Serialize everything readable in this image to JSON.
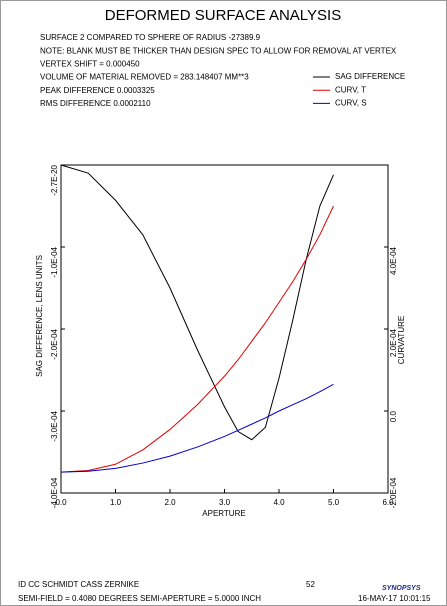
{
  "chart_data": {
    "type": "line",
    "title": "DEFORMED SURFACE ANALYSIS",
    "header_lines": [
      "SURFACE   2 COMPARED TO SPHERE OF RADIUS   -27389.9",
      "NOTE: BLANK MUST BE THICKER THAN DESIGN SPEC TO ALLOW FOR REMOVAL AT VERTEX",
      "VERTEX SHIFT =   0.000450",
      "VOLUME OF MATERIAL REMOVED =   283.148407 MM**3",
      "PEAK DIFFERENCE    0.0003325",
      "RMS DIFFERENCE    0.0002110"
    ],
    "xlabel": "APERTURE",
    "ylabel": "SAG DIFFERENCE, LENS UNITS",
    "y2label": "CURVATURE",
    "x": [
      0,
      0.5,
      1,
      1.5,
      2,
      2.5,
      3,
      3.25,
      3.5,
      3.75,
      4,
      4.25,
      4.5,
      4.75,
      5
    ],
    "series": [
      {
        "name": "SAG DIFFERENCE",
        "color": "#000000",
        "values": [
          0,
          -1e-05,
          -4.3e-05,
          -8.5e-05,
          -0.00015,
          -0.000225,
          -0.000295,
          -0.000325,
          -0.000335,
          -0.00032,
          -0.00026,
          -0.00019,
          -0.000115,
          -5e-05,
          -1.2e-05
        ]
      },
      {
        "name": "CURV, T",
        "color": "#e00000",
        "axis": "y2",
        "values": [
          -0.000149,
          -0.000145,
          -0.00013,
          -9.5e-05,
          -4.5e-05,
          1.5e-05,
          8.5e-05,
          0.000125,
          0.00017,
          0.000215,
          0.000265,
          0.000315,
          0.00037,
          0.00043,
          0.0005
        ]
      },
      {
        "name": "CURV, S",
        "color": "#0000c8",
        "axis": "y2",
        "values": [
          -0.000149,
          -0.000147,
          -0.00014,
          -0.000127,
          -0.00011,
          -8.8e-05,
          -6.2e-05,
          -4.7e-05,
          -3.2e-05,
          -1.7e-05,
          0,
          1.5e-05,
          3e-05,
          4.7e-05,
          6.5e-05
        ]
      }
    ],
    "xlim": [
      0,
      6
    ],
    "xticks": [
      {
        "value": 0,
        "label": "0.0"
      },
      {
        "value": 1,
        "label": "1.0"
      },
      {
        "value": 2,
        "label": "2.0"
      },
      {
        "value": 3,
        "label": "3.0"
      },
      {
        "value": 4,
        "label": "4.0"
      },
      {
        "value": 5,
        "label": "5.0"
      },
      {
        "value": 6,
        "label": "6.0"
      }
    ],
    "ylim": [
      -0.0004,
      -2.7e-20
    ],
    "yticks": [
      {
        "value": -2.7e-20,
        "label": "-2.7E-20"
      },
      {
        "value": -0.0001,
        "label": "-1.0E-04"
      },
      {
        "value": -0.0002,
        "label": "-2.0E-04"
      },
      {
        "value": -0.0003,
        "label": "-3.0E-04"
      },
      {
        "value": -0.0004,
        "label": "-4.0E-04"
      }
    ],
    "y2lim": [
      -0.0002,
      0.0006
    ],
    "y2ticks": [
      {
        "value": -0.0002,
        "label": "-2.0E-04"
      },
      {
        "value": 0,
        "label": "0.0"
      },
      {
        "value": 0.0002,
        "label": "2.0E-04"
      },
      {
        "value": 0.0004,
        "label": "4.0E-04"
      }
    ],
    "footer": {
      "left_top": "ID CC SCHMIDT CASS ZERNIKE",
      "page": "52",
      "left_bottom": "SEMI-FIELD = 0.4080 DEGREES  SEMI-APERTURE = 5.0000 INCH",
      "logo": "SYNOPSYS",
      "date": "16-MAY-17  10:01:15"
    }
  }
}
